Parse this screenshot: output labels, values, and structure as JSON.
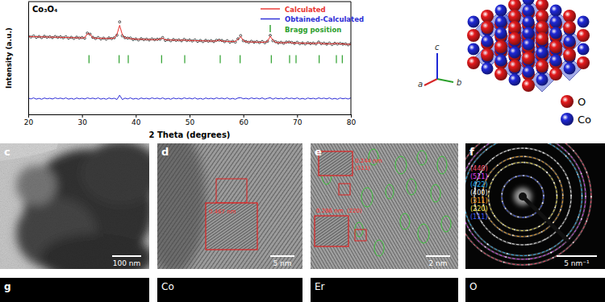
{
  "chart_data": {
    "type": "line",
    "title": "Co₃O₄",
    "x_label": "2 Theta (degrees)",
    "y_label": "Intensity (a.u.)",
    "x": [
      20,
      20.5,
      21,
      21.5,
      22,
      22.5,
      23,
      23.5,
      24,
      24.5,
      25,
      25.5,
      26,
      26.5,
      27,
      27.5,
      28,
      28.5,
      29,
      29.5,
      30,
      30.5,
      31,
      31.5,
      32,
      32.5,
      33,
      33.5,
      34,
      34.5,
      35,
      35.5,
      36,
      36.5,
      37,
      37.5,
      38,
      38.5,
      39,
      39.5,
      40,
      40.5,
      41,
      41.5,
      42,
      42.5,
      43,
      43.5,
      44,
      44.5,
      45,
      45.5,
      46,
      46.5,
      47,
      47.5,
      48,
      48.5,
      49,
      49.5,
      50,
      50.5,
      51,
      51.5,
      52,
      52.5,
      53,
      53.5,
      54,
      54.5,
      55,
      55.5,
      56,
      56.5,
      57,
      57.5,
      58,
      58.5,
      59,
      59.5,
      60,
      60.5,
      61,
      61.5,
      62,
      62.5,
      63,
      63.5,
      64,
      64.5,
      65,
      65.5,
      66,
      66.5,
      67,
      67.5,
      68,
      68.5,
      69,
      69.5,
      70,
      70.5,
      71,
      71.5,
      72,
      72.5,
      73,
      73.5,
      74,
      74.5,
      75,
      75.5,
      76,
      76.5,
      77,
      77.5,
      78,
      78.5,
      79,
      79.5,
      80
    ],
    "xlim": [
      20,
      80
    ],
    "xticks": [
      20,
      30,
      40,
      50,
      60,
      70,
      80
    ],
    "ylim": [
      0,
      100
    ],
    "tick_labels": "x",
    "legend": "upper right",
    "series": [
      {
        "color": "#000000",
        "marker": "circle",
        "line_style": "none",
        "values": [
          69.4,
          68.6,
          69.5,
          68.3,
          69.0,
          68.1,
          69.2,
          68.4,
          68.8,
          68.1,
          69.0,
          68.3,
          68.7,
          67.9,
          68.8,
          67.6,
          68.3,
          67.4,
          68.4,
          67.7,
          68.1,
          67.5,
          72.1,
          71.1,
          68.3,
          67.3,
          68.1,
          66.9,
          67.6,
          66.7,
          67.8,
          67.2,
          67.9,
          70.2,
          82.0,
          69.6,
          68.0,
          67.6,
          67.7,
          66.4,
          66.9,
          66.0,
          67.1,
          66.3,
          66.7,
          66.0,
          66.9,
          66.2,
          66.6,
          66.6,
          68.1,
          65.6,
          66.2,
          65.3,
          66.3,
          65.6,
          66.0,
          65.3,
          66.5,
          65.5,
          65.9,
          65.1,
          66.0,
          64.8,
          65.5,
          64.6,
          65.6,
          64.9,
          65.3,
          64.6,
          65.7,
          65.8,
          65.5,
          64.5,
          65.3,
          64.1,
          64.8,
          64.1,
          67.0,
          69.8,
          65.3,
          64.6,
          63.9,
          64.8,
          64.0,
          64.5,
          63.7,
          64.6,
          63.5,
          64.8,
          70.0,
          65.3,
          64.4,
          63.4,
          63.9,
          63.1,
          64.1,
          64.1,
          63.8,
          63.0,
          63.9,
          62.7,
          63.3,
          62.5,
          63.5,
          62.8,
          63.2,
          62.5,
          64.1,
          62.7,
          63.1,
          62.3,
          63.2,
          62.0,
          63.0,
          62.4,
          62.9,
          62.3,
          62.5,
          61.7,
          62.6
        ]
      },
      {
        "name": "Calculated",
        "color": "#e8312f",
        "line_style": "solid",
        "values": [
          69.0,
          68.9,
          68.9,
          68.8,
          68.8,
          68.7,
          68.7,
          68.6,
          68.5,
          68.5,
          68.4,
          68.4,
          68.3,
          68.2,
          68.2,
          68.1,
          68.1,
          68.0,
          67.9,
          67.9,
          67.8,
          67.9,
          71.5,
          71.2,
          67.9,
          67.6,
          67.5,
          67.4,
          67.4,
          67.3,
          67.3,
          67.4,
          67.6,
          71.0,
          79.0,
          70.5,
          67.6,
          67.9,
          67.1,
          66.9,
          66.7,
          66.6,
          66.6,
          66.5,
          66.4,
          66.4,
          66.3,
          66.3,
          66.2,
          66.9,
          67.5,
          66.1,
          66.0,
          65.9,
          65.8,
          65.8,
          65.7,
          65.7,
          65.9,
          65.6,
          65.5,
          65.4,
          65.4,
          65.3,
          65.3,
          65.2,
          65.1,
          65.1,
          65.0,
          65.0,
          65.1,
          65.9,
          65.1,
          64.8,
          64.7,
          64.6,
          64.6,
          64.7,
          66.5,
          69.0,
          65.5,
          64.3,
          64.3,
          64.2,
          64.1,
          64.1,
          64.0,
          64.0,
          64.0,
          64.6,
          69.3,
          65.8,
          63.9,
          63.6,
          63.6,
          63.5,
          63.5,
          64.2,
          63.4,
          63.3,
          63.3,
          63.2,
          63.1,
          63.1,
          63.0,
          63.0,
          62.9,
          62.9,
          63.5,
          62.8,
          62.7,
          62.6,
          62.6,
          62.5,
          62.8,
          63.0,
          62.4,
          62.5,
          62.2,
          62.1,
          62.0
        ]
      },
      {
        "name": "Obtained-Calculated",
        "color": "#2b2bd6",
        "line_style": "solid",
        "values": [
          14.4,
          13.7,
          14.6,
          13.5,
          14.2,
          13.4,
          14.5,
          13.8,
          14.3,
          13.6,
          14.6,
          13.9,
          14.4,
          13.7,
          14.6,
          13.5,
          14.2,
          13.4,
          14.5,
          13.8,
          14.3,
          13.6,
          14.6,
          13.9,
          14.4,
          13.7,
          14.6,
          13.5,
          14.2,
          13.4,
          14.5,
          13.8,
          14.3,
          13.2,
          17.0,
          13.1,
          14.4,
          13.7,
          14.6,
          13.5,
          14.2,
          13.4,
          14.5,
          13.8,
          14.3,
          13.6,
          14.6,
          13.9,
          14.4,
          13.7,
          14.6,
          13.5,
          14.2,
          13.4,
          14.5,
          13.8,
          14.3,
          13.6,
          14.6,
          13.9,
          14.4,
          13.7,
          14.6,
          13.5,
          14.2,
          13.4,
          14.5,
          13.8,
          14.3,
          13.6,
          14.6,
          13.9,
          14.4,
          13.7,
          14.6,
          13.5,
          14.2,
          13.4,
          14.5,
          14.8,
          13.8,
          14.3,
          13.6,
          14.6,
          13.9,
          14.4,
          13.7,
          14.6,
          13.5,
          14.2,
          14.7,
          13.5,
          14.5,
          13.8,
          14.3,
          13.6,
          14.6,
          13.9,
          14.4,
          13.7,
          14.6,
          13.5,
          14.2,
          13.4,
          14.5,
          13.8,
          14.3,
          13.6,
          14.6,
          13.9,
          14.4,
          13.7,
          14.6,
          13.5,
          14.2,
          13.4,
          14.5,
          13.8,
          14.3,
          13.6,
          14.6
        ]
      },
      {
        "name": "Bragg position",
        "type": "bragg",
        "color": "#2ca02c",
        "marker": "vline",
        "x": [
          31.3,
          36.9,
          38.6,
          44.8,
          49.1,
          55.7,
          59.4,
          65.2,
          68.6,
          69.8,
          74.1,
          77.3,
          78.4
        ],
        "values": [
          49,
          49,
          49,
          49,
          49,
          49,
          49,
          49,
          49,
          49,
          49,
          49,
          49
        ]
      }
    ]
  },
  "structure": {
    "axes": [
      "a",
      "b",
      "c"
    ],
    "atoms": [
      {
        "label": "O",
        "color": "#e41a1c"
      },
      {
        "label": "Co",
        "color": "#1f28d6"
      }
    ]
  },
  "panels": [
    {
      "label": "c",
      "scale_bar": "100 nm"
    },
    {
      "label": "d",
      "scale_bar": "5 nm",
      "annotations": [
        "0.467 nm"
      ]
    },
    {
      "label": "e",
      "scale_bar": "2 nm",
      "annotations": [
        "0.244 nm",
        "(311)",
        "0.286 nm  (220)"
      ]
    },
    {
      "label": "f",
      "scale_bar": "5 nm⁻¹",
      "rings": [
        {
          "label": "(440)",
          "color": "#ff4d6d"
        },
        {
          "label": "(511)",
          "color": "#e040fb"
        },
        {
          "label": "(422)",
          "color": "#29b6f6"
        },
        {
          "label": "(400)",
          "color": "#f0f0f0"
        },
        {
          "label": "(311)",
          "color": "#ffa726"
        },
        {
          "label": "(220)",
          "color": "#ffee58"
        },
        {
          "label": "(111)",
          "color": "#3d5afe"
        }
      ]
    }
  ],
  "eds_maps": [
    {
      "label": "g"
    },
    {
      "label": "Co"
    },
    {
      "label": "Er"
    },
    {
      "label": "O"
    }
  ]
}
